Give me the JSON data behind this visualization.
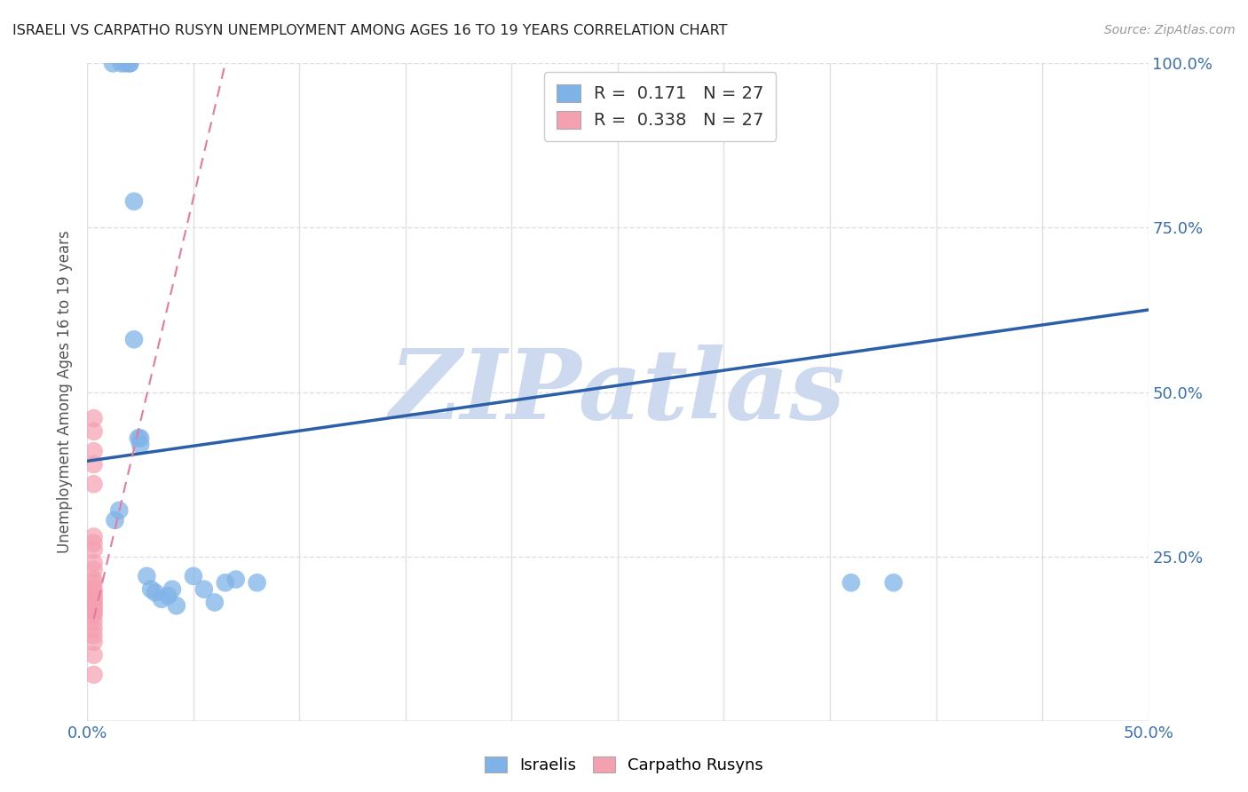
{
  "title": "ISRAELI VS CARPATHO RUSYN UNEMPLOYMENT AMONG AGES 16 TO 19 YEARS CORRELATION CHART",
  "source": "Source: ZipAtlas.com",
  "ylabel": "Unemployment Among Ages 16 to 19 years",
  "xlim": [
    0.0,
    0.5
  ],
  "ylim": [
    0.0,
    1.0
  ],
  "R_israeli": 0.171,
  "N_israeli": 27,
  "R_carpatho": 0.338,
  "N_carpatho": 27,
  "israeli_color": "#7fb3e8",
  "carpatho_color": "#f4a0b0",
  "trendline_israeli_color": "#2b5fa8",
  "trendline_carpatho_color": "#e878a0",
  "watermark": "ZIPatlas",
  "watermark_color": "#ccd9ee",
  "israeli_x": [
    0.012,
    0.016,
    0.018,
    0.02,
    0.02,
    0.022,
    0.022,
    0.024,
    0.025,
    0.025,
    0.028,
    0.03,
    0.032,
    0.035,
    0.038,
    0.04,
    0.042,
    0.05,
    0.055,
    0.06,
    0.065,
    0.07,
    0.08,
    0.36,
    0.38,
    0.013,
    0.015
  ],
  "israeli_y": [
    1.0,
    1.0,
    1.0,
    1.0,
    1.0,
    0.79,
    0.58,
    0.43,
    0.43,
    0.42,
    0.22,
    0.2,
    0.195,
    0.185,
    0.19,
    0.2,
    0.175,
    0.22,
    0.2,
    0.18,
    0.21,
    0.215,
    0.21,
    0.21,
    0.21,
    0.305,
    0.32
  ],
  "carpatho_x": [
    0.003,
    0.003,
    0.003,
    0.003,
    0.003,
    0.003,
    0.003,
    0.003,
    0.003,
    0.003,
    0.003,
    0.003,
    0.003,
    0.003,
    0.003,
    0.003,
    0.003,
    0.003,
    0.003,
    0.003,
    0.003,
    0.003,
    0.003,
    0.003,
    0.003,
    0.003,
    0.003
  ],
  "carpatho_y": [
    0.46,
    0.44,
    0.41,
    0.39,
    0.36,
    0.28,
    0.27,
    0.26,
    0.24,
    0.23,
    0.215,
    0.21,
    0.2,
    0.195,
    0.19,
    0.185,
    0.18,
    0.175,
    0.17,
    0.165,
    0.16,
    0.15,
    0.14,
    0.13,
    0.12,
    0.1,
    0.07
  ],
  "israeli_trendline_x0": 0.0,
  "israeli_trendline_y0": 0.395,
  "israeli_trendline_x1": 0.5,
  "israeli_trendline_y1": 0.625,
  "carpatho_trendline_x0": 0.003,
  "carpatho_trendline_y0": 0.155,
  "carpatho_trendline_x1": 0.065,
  "carpatho_trendline_y1": 1.0,
  "background_color": "#ffffff",
  "grid_color": "#e0e0e0"
}
